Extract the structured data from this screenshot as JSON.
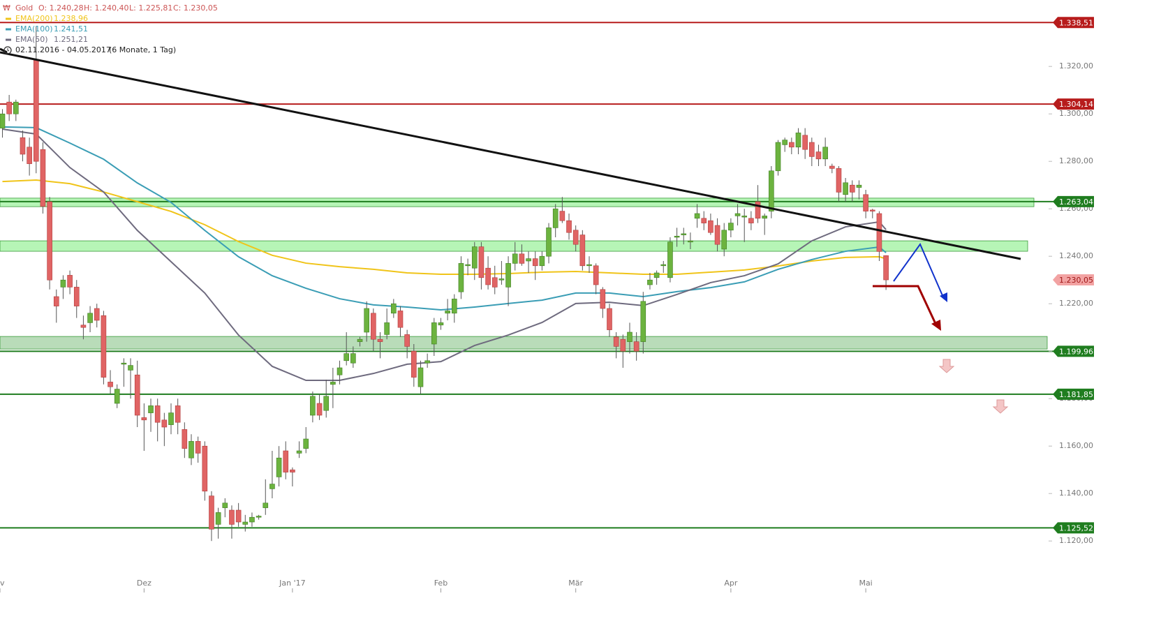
{
  "chart_data": {
    "type": "candlestick",
    "legend": {
      "symbol": "Gold",
      "ohlc": [
        "O: 1.240,28",
        "H: 1.240,40",
        "L: 1.225,81",
        "C: 1.230,05"
      ],
      "range": "02.11.2016 - 04.05.2017",
      "period": "(6 Monate, 1 Tag)"
    },
    "x": [
      0,
      1,
      2,
      3,
      4,
      5,
      6,
      7,
      8,
      9,
      10,
      11,
      12,
      13,
      14,
      15,
      16,
      17,
      18,
      19,
      20,
      21,
      22,
      23,
      24,
      25,
      26,
      27,
      28,
      29,
      30,
      31,
      32,
      33,
      34,
      35,
      36,
      37,
      38,
      39,
      40,
      41,
      42,
      43,
      44,
      45,
      46,
      47,
      48,
      49,
      50,
      51,
      52,
      53,
      54,
      55,
      56,
      57,
      58,
      59,
      60,
      61,
      62,
      63,
      64,
      65,
      66,
      67,
      68,
      69,
      70,
      71,
      72,
      73,
      74,
      75,
      76,
      77,
      78,
      79,
      80,
      81,
      82,
      83,
      84,
      85,
      86,
      87,
      88,
      89,
      90,
      91,
      92,
      93,
      94,
      95,
      96,
      97,
      98,
      99,
      100,
      101,
      102,
      103,
      104,
      105,
      106,
      107,
      108,
      109,
      110,
      111,
      112,
      113,
      114,
      115,
      116,
      117,
      118,
      119,
      120,
      121,
      122,
      123,
      124,
      125,
      126,
      127,
      128,
      129,
      130,
      131
    ],
    "candles": {
      "open": [
        1294,
        1305,
        1300,
        1290,
        1286,
        1323,
        1285,
        1263,
        1223,
        1227,
        1232,
        1227,
        1211,
        1212,
        1218,
        1215,
        1187,
        1178,
        1194.5,
        1192,
        1190,
        1172,
        1174,
        1177,
        1171,
        1169,
        1177,
        1167,
        1155,
        1162,
        1160,
        1139,
        1127,
        1134,
        1133,
        1133,
        1127,
        1128,
        1130,
        1134,
        1142,
        1147,
        1158,
        1150,
        1157,
        1159,
        1173,
        1178,
        1175,
        1186,
        1190,
        1196,
        1195,
        1204,
        1208,
        1216,
        1205,
        1207,
        1216,
        1217,
        1207,
        1200,
        1185,
        1195,
        1203,
        1211,
        1216,
        1216,
        1225,
        1236,
        1235,
        1244,
        1235,
        1231,
        1230,
        1227,
        1237,
        1241,
        1238,
        1239,
        1236,
        1240,
        1252,
        1259,
        1255,
        1251,
        1249,
        1236,
        1236,
        1226,
        1218,
        1206,
        1205,
        1204,
        1204,
        1204,
        1228,
        1231,
        1236,
        1231,
        1248,
        1249,
        1246,
        1256,
        1256,
        1255,
        1253,
        1243,
        1251,
        1257,
        1256.5,
        1256,
        1263,
        1256,
        1259,
        1276,
        1287,
        1288,
        1286,
        1291,
        1288,
        1284,
        1281,
        1278,
        1277,
        1266,
        1270,
        1269,
        1266,
        1259.5,
        1258,
        1240.28
      ],
      "high": [
        1302,
        1308,
        1306,
        1293,
        1290,
        1337,
        1288,
        1265,
        1226,
        1232,
        1234,
        1230,
        1215,
        1219,
        1220,
        1217,
        1192,
        1186,
        1197,
        1197,
        1196,
        1178,
        1180,
        1180,
        1174,
        1178,
        1180,
        1170,
        1165,
        1164,
        1162,
        1141,
        1134,
        1138,
        1135,
        1136,
        1131,
        1132,
        1131,
        1146,
        1158,
        1160,
        1162,
        1151,
        1162,
        1168,
        1183,
        1182,
        1188,
        1193,
        1196,
        1208,
        1202,
        1206,
        1221,
        1218,
        1208,
        1218,
        1222,
        1219,
        1209,
        1203,
        1196,
        1199,
        1214,
        1214,
        1222,
        1224,
        1240,
        1239,
        1246,
        1246,
        1240,
        1236,
        1238,
        1240,
        1246,
        1245,
        1242,
        1242,
        1242,
        1254,
        1262,
        1265,
        1258,
        1253,
        1251,
        1240,
        1237,
        1227,
        1220,
        1208,
        1207,
        1212,
        1208,
        1225,
        1233,
        1234,
        1238,
        1248,
        1252,
        1252,
        1250,
        1262,
        1259,
        1258,
        1256,
        1254,
        1256,
        1262,
        1260,
        1259,
        1270,
        1258,
        1278,
        1289,
        1290,
        1290,
        1294,
        1294,
        1290,
        1287,
        1290,
        1279,
        1278,
        1273,
        1272,
        1272,
        1268,
        1260,
        1259,
        1240.4
      ],
      "low": [
        1290,
        1297,
        1297,
        1280,
        1274,
        1275,
        1258,
        1226,
        1212,
        1222,
        1224,
        1214,
        1205,
        1208,
        1210,
        1186,
        1182,
        1176,
        1185,
        1180,
        1168,
        1158,
        1166,
        1162,
        1160,
        1165,
        1165,
        1155,
        1152,
        1153,
        1137,
        1120,
        1121,
        1130,
        1121,
        1126,
        1124,
        1126,
        1129,
        1131,
        1138,
        1143,
        1146,
        1143,
        1155,
        1157,
        1170,
        1171,
        1172,
        1176,
        1186,
        1194,
        1193,
        1202,
        1204,
        1200,
        1197,
        1205,
        1214,
        1206,
        1197,
        1185,
        1182,
        1193,
        1198,
        1209,
        1213,
        1212,
        1222,
        1232,
        1230,
        1226,
        1226,
        1224,
        1228,
        1219,
        1234,
        1236,
        1233,
        1230,
        1234,
        1237,
        1248,
        1254,
        1247,
        1242,
        1234,
        1233,
        1224,
        1214,
        1206,
        1197,
        1193,
        1199,
        1196,
        1199,
        1226,
        1228,
        1233,
        1229,
        1244,
        1245,
        1243,
        1252,
        1251,
        1249,
        1242,
        1240,
        1248,
        1253,
        1246,
        1251,
        1254,
        1249,
        1256,
        1274,
        1284,
        1283,
        1283,
        1281,
        1278,
        1278,
        1278,
        1275,
        1263,
        1263,
        1263,
        1264,
        1256,
        1256,
        1238,
        1225.81
      ],
      "close": [
        1300,
        1300,
        1305,
        1283,
        1279,
        1280,
        1261,
        1230,
        1219,
        1230,
        1227,
        1219,
        1210,
        1216,
        1213,
        1189,
        1185,
        1184,
        1195,
        1194,
        1173,
        1171,
        1177,
        1170,
        1168,
        1174,
        1170,
        1159,
        1162,
        1157,
        1141,
        1125,
        1132,
        1136,
        1127,
        1128,
        1128,
        1130,
        1130.5,
        1136,
        1144,
        1155,
        1149,
        1149,
        1158,
        1163,
        1181,
        1173,
        1181,
        1187,
        1193,
        1199,
        1199,
        1205,
        1218,
        1205,
        1204,
        1212,
        1220,
        1210,
        1202,
        1189,
        1193,
        1196,
        1212,
        1212,
        1217,
        1222,
        1237,
        1236.5,
        1244,
        1231,
        1228,
        1227,
        1230.5,
        1237,
        1241,
        1237,
        1239,
        1236,
        1240,
        1252,
        1260,
        1255,
        1250,
        1245,
        1236,
        1236.5,
        1228,
        1218,
        1209,
        1202,
        1200,
        1208,
        1200,
        1221,
        1230,
        1233,
        1236.5,
        1246,
        1248.5,
        1249.5,
        1246.5,
        1258,
        1254,
        1250,
        1245,
        1251,
        1254,
        1258,
        1257,
        1254,
        1256,
        1257,
        1276,
        1288,
        1289,
        1286,
        1292,
        1285,
        1282,
        1281,
        1286,
        1277,
        1267,
        1271,
        1267,
        1270,
        1259,
        1259,
        1242,
        1230.05
      ]
    },
    "up_color": "#6cb33f",
    "down_color": "#e06464",
    "series": [
      {
        "name": "EMA(200)",
        "color": "#f0c419",
        "last_label": "1.238,96",
        "x": [
          0,
          5,
          10,
          15,
          20,
          25,
          30,
          35,
          40,
          45,
          50,
          55,
          60,
          65,
          70,
          75,
          80,
          85,
          90,
          95,
          100,
          105,
          110,
          115,
          120,
          125,
          130,
          131
        ],
        "values": [
          1271.5,
          1272.1,
          1270.6,
          1267.1,
          1263,
          1258.9,
          1253.3,
          1246.2,
          1240.4,
          1237.1,
          1235.6,
          1234.5,
          1233,
          1232.4,
          1232.4,
          1232.7,
          1233.3,
          1233.6,
          1233,
          1232.4,
          1232.4,
          1233.3,
          1234.2,
          1235.9,
          1238,
          1239.5,
          1239.8,
          1238.96
        ]
      },
      {
        "name": "EMA(100)",
        "color": "#3a9db5",
        "last_label": "1.241,51",
        "x": [
          0,
          5,
          10,
          15,
          20,
          25,
          30,
          35,
          40,
          45,
          50,
          55,
          60,
          65,
          70,
          75,
          80,
          85,
          90,
          95,
          100,
          105,
          110,
          115,
          120,
          125,
          130,
          131
        ],
        "values": [
          1294.5,
          1294.2,
          1287.7,
          1280.9,
          1270.9,
          1262.7,
          1250.9,
          1239.8,
          1231.8,
          1226.5,
          1222.1,
          1219.5,
          1218.6,
          1217.4,
          1218.6,
          1220.1,
          1221.5,
          1224.5,
          1224.5,
          1223,
          1225.1,
          1226.8,
          1229.2,
          1234.5,
          1238.6,
          1242.1,
          1243.9,
          1241.51
        ]
      },
      {
        "name": "EMA(50)",
        "color": "#6e6a7e",
        "last_label": "1.251,21",
        "x": [
          0,
          5,
          10,
          15,
          20,
          25,
          30,
          35,
          40,
          45,
          50,
          55,
          60,
          65,
          70,
          75,
          80,
          85,
          90,
          95,
          100,
          105,
          110,
          115,
          120,
          125,
          130,
          131
        ],
        "values": [
          1293.6,
          1291.5,
          1277.4,
          1267.1,
          1250.9,
          1237.7,
          1224.5,
          1206.8,
          1193.6,
          1187.7,
          1187.7,
          1190.6,
          1194.5,
          1195.6,
          1202.4,
          1206.8,
          1212.1,
          1220.1,
          1220.6,
          1219.2,
          1223.9,
          1228.9,
          1231.8,
          1236.8,
          1246.5,
          1252.4,
          1254.5,
          1251.21
        ]
      }
    ],
    "zones": [
      {
        "low": 1260.9,
        "high": 1264.5,
        "color": "#b6f5b6"
      },
      {
        "low": 1242.1,
        "high": 1246.5,
        "color": "#b6f5b6"
      },
      {
        "low": 1200.9,
        "high": 1206.2,
        "color": "#b9dcb9"
      }
    ],
    "levels": [
      {
        "value": 1338.51,
        "label": "1.338,51",
        "color": "#b71c1c",
        "line": true
      },
      {
        "value": 1304.14,
        "label": "1.304,14",
        "color": "#b71c1c",
        "line": true
      },
      {
        "value": 1263.04,
        "label": "1.263,04",
        "color": "#1f7d1f",
        "line": true
      },
      {
        "value": 1230.05,
        "label": "1.230,05",
        "color": "#f2a3a3",
        "line": false
      },
      {
        "value": 1199.96,
        "label": "1.199,96",
        "color": "#1f7d1f",
        "line": true
      },
      {
        "value": 1181.85,
        "label": "1.181,85",
        "color": "#1f7d1f",
        "line": true
      },
      {
        "value": 1125.52,
        "label": "1.125,52",
        "color": "#1f7d1f",
        "line": true
      }
    ],
    "xlim": [
      -0.36,
      154.9
    ],
    "xticks": [
      {
        "value": -0.36,
        "label": "v"
      },
      {
        "value": 21,
        "label": "Dez"
      },
      {
        "value": 43,
        "label": "Jan '17"
      },
      {
        "value": 65,
        "label": "Feb"
      },
      {
        "value": 85,
        "label": "Mär"
      },
      {
        "value": 108,
        "label": "Apr"
      },
      {
        "value": 128,
        "label": "Mai"
      }
    ],
    "ylim": [
      1098,
      1348
    ],
    "yticks": [
      {
        "value": 1120,
        "label": "1.120,00"
      },
      {
        "value": 1140,
        "label": "1.140,00"
      },
      {
        "value": 1160,
        "label": "1.160,00"
      },
      {
        "value": 1180,
        "label": "1.180,00"
      },
      {
        "value": 1200,
        "label": "1.200,00"
      },
      {
        "value": 1220,
        "label": "1.220,00"
      },
      {
        "value": 1240,
        "label": "1.240,00"
      },
      {
        "value": 1260,
        "label": "1.260,00"
      },
      {
        "value": 1280,
        "label": "1.280,00"
      },
      {
        "value": 1300,
        "label": "1.300,00"
      },
      {
        "value": 1320,
        "label": "1.320,00"
      }
    ]
  }
}
